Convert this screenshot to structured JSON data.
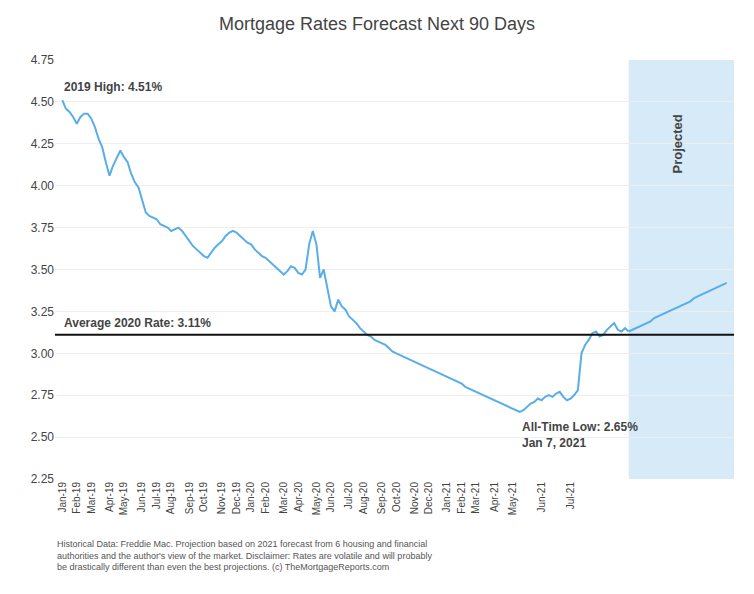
{
  "chart_data": {
    "type": "line",
    "title": "Mortgage Rates Forecast Next 90 Days",
    "categories": [
      "Jan-19",
      null,
      null,
      null,
      "Feb-19",
      null,
      null,
      null,
      "Mar-19",
      null,
      null,
      null,
      null,
      "Apr-19",
      null,
      null,
      null,
      "May-19",
      null,
      null,
      null,
      null,
      "Jun-19",
      null,
      null,
      null,
      "Jul-19",
      null,
      null,
      null,
      "Aug-19",
      null,
      null,
      null,
      null,
      "Sep-19",
      null,
      null,
      null,
      "Oct-19",
      null,
      null,
      null,
      null,
      "Nov-19",
      null,
      null,
      null,
      "Dec-19",
      null,
      null,
      null,
      "Jan-20",
      null,
      null,
      null,
      "Feb-20",
      null,
      null,
      null,
      null,
      "Mar-20",
      null,
      null,
      null,
      "Apr-20",
      null,
      null,
      null,
      null,
      "May-20",
      null,
      null,
      null,
      "Jun-20",
      null,
      null,
      null,
      null,
      "Jul-20",
      null,
      null,
      null,
      "Aug-20",
      null,
      null,
      null,
      null,
      "Sep-20",
      null,
      null,
      null,
      "Oct-20",
      null,
      null,
      null,
      null,
      "Nov-20",
      null,
      null,
      null,
      "Dec-20",
      null,
      null,
      null,
      null,
      "Jan-21",
      null,
      null,
      null,
      "Feb-21",
      null,
      null,
      null,
      "Mar-21",
      null,
      null,
      null,
      null,
      "Apr-21",
      null,
      null,
      null,
      null,
      "May-21",
      null,
      null,
      null,
      null,
      null,
      null,
      null,
      "Jun-21",
      null,
      null,
      null,
      null,
      null,
      null,
      null,
      "Jul-21",
      null,
      null,
      null,
      null,
      null,
      null,
      null,
      null,
      null,
      null,
      null,
      null,
      null,
      null,
      null,
      null,
      null,
      null,
      null,
      null,
      null,
      null,
      null,
      null,
      null,
      null,
      null,
      null,
      null,
      null,
      null,
      null,
      null,
      null,
      null,
      null,
      null,
      null,
      null,
      null,
      null,
      null,
      null
    ],
    "series": [
      {
        "color": "#5aaee8",
        "values": [
          4.51,
          4.46,
          4.44,
          4.41,
          4.37,
          4.41,
          4.43,
          4.43,
          4.4,
          4.35,
          4.28,
          4.23,
          4.14,
          4.06,
          4.12,
          4.17,
          4.21,
          4.17,
          4.14,
          4.07,
          4.02,
          3.99,
          3.92,
          3.84,
          3.82,
          3.81,
          3.8,
          3.77,
          3.76,
          3.75,
          3.73,
          3.74,
          3.75,
          3.73,
          3.7,
          3.67,
          3.64,
          3.62,
          3.6,
          3.58,
          3.57,
          3.6,
          3.63,
          3.65,
          3.67,
          3.7,
          3.72,
          3.73,
          3.72,
          3.7,
          3.68,
          3.66,
          3.65,
          3.62,
          3.6,
          3.58,
          3.57,
          3.55,
          3.53,
          3.51,
          3.49,
          3.47,
          3.49,
          3.52,
          3.51,
          3.48,
          3.47,
          3.5,
          3.65,
          3.73,
          3.65,
          3.45,
          3.5,
          3.4,
          3.28,
          3.25,
          3.32,
          3.28,
          3.26,
          3.22,
          3.2,
          3.18,
          3.15,
          3.13,
          3.11,
          3.1,
          3.08,
          3.07,
          3.06,
          3.05,
          3.03,
          3.01,
          3.0,
          2.99,
          2.98,
          2.97,
          2.96,
          2.95,
          2.94,
          2.93,
          2.92,
          2.91,
          2.9,
          2.89,
          2.88,
          2.87,
          2.86,
          2.85,
          2.84,
          2.83,
          2.82,
          2.8,
          2.79,
          2.78,
          2.77,
          2.76,
          2.75,
          2.74,
          2.73,
          2.72,
          2.71,
          2.7,
          2.69,
          2.68,
          2.67,
          2.66,
          2.65,
          2.66,
          2.68,
          2.7,
          2.71,
          2.73,
          2.72,
          2.74,
          2.75,
          2.74,
          2.76,
          2.77,
          2.74,
          2.72,
          2.73,
          2.75,
          2.78,
          3.0,
          3.05,
          3.08,
          3.12,
          3.13,
          3.1,
          3.11,
          3.14,
          3.16,
          3.18,
          3.14,
          3.13,
          3.15,
          3.13,
          null,
          null,
          null,
          null,
          null,
          null,
          null,
          null,
          null,
          null,
          null,
          null,
          null,
          null,
          null,
          null,
          null,
          null,
          null,
          null,
          null,
          null,
          null,
          null,
          null,
          null,
          null
        ]
      },
      {
        "color": "#5aaee8",
        "values": [
          null,
          null,
          null,
          null,
          null,
          null,
          null,
          null,
          null,
          null,
          null,
          null,
          null,
          null,
          null,
          null,
          null,
          null,
          null,
          null,
          null,
          null,
          null,
          null,
          null,
          null,
          null,
          null,
          null,
          null,
          null,
          null,
          null,
          null,
          null,
          null,
          null,
          null,
          null,
          null,
          null,
          null,
          null,
          null,
          null,
          null,
          null,
          null,
          null,
          null,
          null,
          null,
          null,
          null,
          null,
          null,
          null,
          null,
          null,
          null,
          null,
          null,
          null,
          null,
          null,
          null,
          null,
          null,
          null,
          null,
          null,
          null,
          null,
          null,
          null,
          null,
          null,
          null,
          null,
          null,
          null,
          null,
          null,
          null,
          null,
          null,
          null,
          null,
          null,
          null,
          null,
          null,
          null,
          null,
          null,
          null,
          null,
          null,
          null,
          null,
          null,
          null,
          null,
          null,
          null,
          null,
          null,
          null,
          null,
          null,
          null,
          null,
          null,
          null,
          null,
          null,
          null,
          null,
          null,
          null,
          null,
          null,
          null,
          null,
          null,
          null,
          null,
          null,
          null,
          null,
          null,
          null,
          null,
          null,
          null,
          null,
          null,
          null,
          null,
          null,
          null,
          null,
          null,
          null,
          null,
          null,
          null,
          null,
          null,
          null,
          null,
          null,
          null,
          null,
          null,
          null,
          3.13,
          3.14,
          3.15,
          3.16,
          3.17,
          3.18,
          3.19,
          3.21,
          3.22,
          3.23,
          3.24,
          3.25,
          3.26,
          3.27,
          3.28,
          3.29,
          3.3,
          3.31,
          3.33,
          3.34,
          3.35,
          3.36,
          3.37,
          3.38,
          3.39,
          3.4,
          3.41,
          3.42
        ]
      }
    ],
    "ylim": [
      2.25,
      4.75
    ],
    "yticks": [
      2.25,
      {
        "value": 2.5,
        "label": "2.50"
      },
      2.75,
      {
        "value": 3.0,
        "label": "3.00"
      },
      3.25,
      {
        "value": 3.5,
        "label": "3.50"
      },
      3.75,
      {
        "value": 4.0,
        "label": "4.00"
      },
      4.25,
      {
        "value": 4.5,
        "label": "4.50"
      },
      4.75
    ],
    "grid": "y",
    "reference_line": {
      "value": 3.11,
      "color": "#111111",
      "label": "Average 2020 Rate: 3.11%"
    },
    "projected_region": {
      "color": "#d6eaf8",
      "label": "Projected"
    },
    "high_label": "2019 High: 4.51%",
    "low_label": "All-Time Low: 2.65%",
    "low_date_label": "Jan 7, 2021",
    "caption": "Historical Data: Freddie Mac. Projection based on 2021 forecast from 6 housing and financial\nauthorities and the author's view of the market. Disclaimer: Rates are volatile and will probably\nbe drastically different than even the best projections. (c) TheMortgageReports.com"
  }
}
